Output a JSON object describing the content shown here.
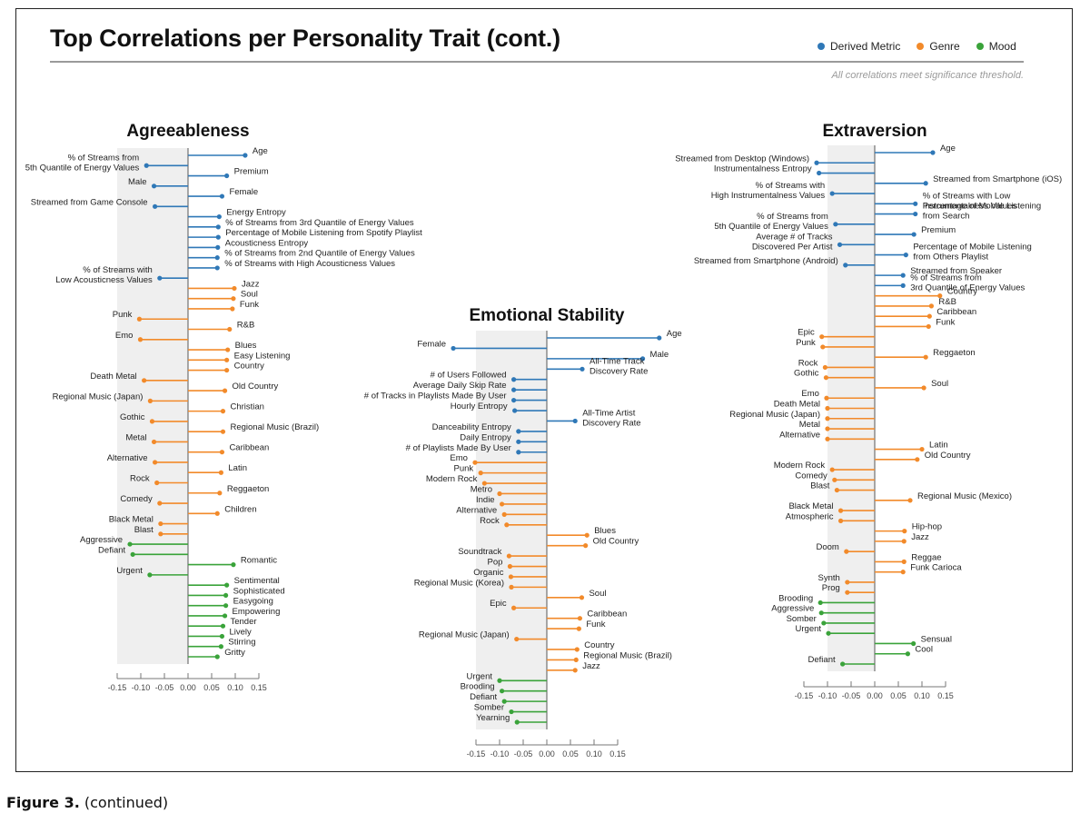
{
  "title": "Top Correlations per Personality Trait (cont.)",
  "note": "All correlations meet significance threshold.",
  "caption": {
    "label": "Figure 3.",
    "text": "(continued)"
  },
  "colors": {
    "Derived Metric": "#2f78b7",
    "Genre": "#f28a2a",
    "Mood": "#3aa33a",
    "band": "#efefef",
    "axis": "#777777"
  },
  "legend": [
    {
      "label": "Derived Metric",
      "category": "Derived Metric"
    },
    {
      "label": "Genre",
      "category": "Genre"
    },
    {
      "label": "Mood",
      "category": "Mood"
    }
  ],
  "chart_data": [
    {
      "type": "lollipop",
      "title": "Agreeableness",
      "xlim": [
        -0.15,
        0.15
      ],
      "ticks": [
        "-0.15",
        "-0.10",
        "-0.05",
        "0.00",
        "0.05",
        "0.10",
        "0.15"
      ],
      "band": [
        -0.15,
        0
      ],
      "items": [
        {
          "label": "Age",
          "value": 0.121,
          "category": "Derived Metric"
        },
        {
          "label": [
            "% of Streams from",
            "5th Quantile of Energy Values"
          ],
          "value": -0.088,
          "category": "Derived Metric"
        },
        {
          "label": "Premium",
          "value": 0.082,
          "category": "Derived Metric"
        },
        {
          "label": "Male",
          "value": -0.072,
          "category": "Derived Metric"
        },
        {
          "label": "Female",
          "value": 0.072,
          "category": "Derived Metric"
        },
        {
          "label": "Streamed from Game Console",
          "value": -0.07,
          "category": "Derived Metric"
        },
        {
          "label": "Energy Entropy",
          "value": 0.066,
          "category": "Derived Metric"
        },
        {
          "label": "% of Streams from 3rd Quantile of Energy Values",
          "value": 0.064,
          "category": "Derived Metric"
        },
        {
          "label": "Percentage of Mobile Listening from Spotify Playlist",
          "value": 0.064,
          "category": "Derived Metric"
        },
        {
          "label": "Acousticness Entropy",
          "value": 0.063,
          "category": "Derived Metric"
        },
        {
          "label": "% of Streams from 2nd Quantile of Energy Values",
          "value": 0.062,
          "category": "Derived Metric"
        },
        {
          "label": "% of Streams with High Acousticness Values",
          "value": 0.062,
          "category": "Derived Metric"
        },
        {
          "label": [
            "% of Streams with",
            "Low Acousticness Values"
          ],
          "value": -0.06,
          "category": "Derived Metric"
        },
        {
          "label": "Jazz",
          "value": 0.098,
          "category": "Genre"
        },
        {
          "label": "Soul",
          "value": 0.096,
          "category": "Genre"
        },
        {
          "label": "Funk",
          "value": 0.094,
          "category": "Genre"
        },
        {
          "label": "Punk",
          "value": -0.103,
          "category": "Genre"
        },
        {
          "label": "R&B",
          "value": 0.088,
          "category": "Genre"
        },
        {
          "label": "Emo",
          "value": -0.101,
          "category": "Genre"
        },
        {
          "label": "Blues",
          "value": 0.084,
          "category": "Genre"
        },
        {
          "label": "Easy Listening",
          "value": 0.082,
          "category": "Genre"
        },
        {
          "label": "Country",
          "value": 0.082,
          "category": "Genre"
        },
        {
          "label": "Death Metal",
          "value": -0.093,
          "category": "Genre"
        },
        {
          "label": "Old Country",
          "value": 0.078,
          "category": "Genre"
        },
        {
          "label": "Regional Music (Japan)",
          "value": -0.08,
          "category": "Genre"
        },
        {
          "label": "Christian",
          "value": 0.074,
          "category": "Genre"
        },
        {
          "label": "Gothic",
          "value": -0.076,
          "category": "Genre"
        },
        {
          "label": "Regional Music (Brazil)",
          "value": 0.074,
          "category": "Genre"
        },
        {
          "label": "Metal",
          "value": -0.072,
          "category": "Genre"
        },
        {
          "label": "Caribbean",
          "value": 0.072,
          "category": "Genre"
        },
        {
          "label": "Alternative",
          "value": -0.07,
          "category": "Genre"
        },
        {
          "label": "Latin",
          "value": 0.07,
          "category": "Genre"
        },
        {
          "label": "Rock",
          "value": -0.066,
          "category": "Genre"
        },
        {
          "label": "Reggaeton",
          "value": 0.067,
          "category": "Genre"
        },
        {
          "label": "Comedy",
          "value": -0.06,
          "category": "Genre"
        },
        {
          "label": "Children",
          "value": 0.062,
          "category": "Genre"
        },
        {
          "label": "Black Metal",
          "value": -0.058,
          "category": "Genre"
        },
        {
          "label": "Blast",
          "value": -0.058,
          "category": "Genre"
        },
        {
          "label": "Aggressive",
          "value": -0.123,
          "category": "Mood"
        },
        {
          "label": "Defiant",
          "value": -0.117,
          "category": "Mood"
        },
        {
          "label": "Romantic",
          "value": 0.096,
          "category": "Mood"
        },
        {
          "label": "Urgent",
          "value": -0.081,
          "category": "Mood"
        },
        {
          "label": "Sentimental",
          "value": 0.082,
          "category": "Mood"
        },
        {
          "label": "Sophisticated",
          "value": 0.08,
          "category": "Mood"
        },
        {
          "label": "Easygoing",
          "value": 0.08,
          "category": "Mood"
        },
        {
          "label": "Empowering",
          "value": 0.078,
          "category": "Mood"
        },
        {
          "label": "Tender",
          "value": 0.074,
          "category": "Mood"
        },
        {
          "label": "Lively",
          "value": 0.072,
          "category": "Mood"
        },
        {
          "label": "Stirring",
          "value": 0.07,
          "category": "Mood"
        },
        {
          "label": "Gritty",
          "value": 0.062,
          "category": "Mood"
        }
      ]
    },
    {
      "type": "lollipop",
      "title": "Emotional Stability",
      "xlim": [
        -0.15,
        0.15
      ],
      "ticks": [
        "-0.15",
        "-0.10",
        "-0.05",
        "0.00",
        "0.05",
        "0.10",
        "0.15"
      ],
      "band": [
        -0.15,
        0
      ],
      "items": [
        {
          "label": "Age",
          "value": 0.238,
          "category": "Derived Metric"
        },
        {
          "label": "Female",
          "value": -0.198,
          "category": "Derived Metric"
        },
        {
          "label": "Male",
          "value": 0.203,
          "category": "Derived Metric"
        },
        {
          "label": [
            "All-Time Track",
            "Discovery Rate"
          ],
          "value": 0.075,
          "category": "Derived Metric"
        },
        {
          "label": "# of Users Followed",
          "value": -0.07,
          "category": "Derived Metric"
        },
        {
          "label": "Average Daily Skip Rate",
          "value": -0.07,
          "category": "Derived Metric"
        },
        {
          "label": "# of Tracks in Playlists Made By User",
          "value": -0.07,
          "category": "Derived Metric"
        },
        {
          "label": "Hourly Entropy",
          "value": -0.068,
          "category": "Derived Metric"
        },
        {
          "label": [
            "All-Time Artist",
            "Discovery Rate"
          ],
          "value": 0.06,
          "category": "Derived Metric"
        },
        {
          "label": "Danceability Entropy",
          "value": -0.06,
          "category": "Derived Metric"
        },
        {
          "label": "Daily Entropy",
          "value": -0.06,
          "category": "Derived Metric"
        },
        {
          "label": "# of Playlists Made By User",
          "value": -0.06,
          "category": "Derived Metric"
        },
        {
          "label": "Emo",
          "value": -0.152,
          "category": "Genre"
        },
        {
          "label": "Punk",
          "value": -0.14,
          "category": "Genre"
        },
        {
          "label": "Modern Rock",
          "value": -0.132,
          "category": "Genre"
        },
        {
          "label": "Metro",
          "value": -0.1,
          "category": "Genre"
        },
        {
          "label": "Indie",
          "value": -0.095,
          "category": "Genre"
        },
        {
          "label": "Alternative",
          "value": -0.09,
          "category": "Genre"
        },
        {
          "label": "Rock",
          "value": -0.085,
          "category": "Genre"
        },
        {
          "label": "Blues",
          "value": 0.085,
          "category": "Genre"
        },
        {
          "label": "Old Country",
          "value": 0.082,
          "category": "Genre"
        },
        {
          "label": "Soundtrack",
          "value": -0.08,
          "category": "Genre"
        },
        {
          "label": "Pop",
          "value": -0.078,
          "category": "Genre"
        },
        {
          "label": "Organic",
          "value": -0.076,
          "category": "Genre"
        },
        {
          "label": "Regional Music (Korea)",
          "value": -0.075,
          "category": "Genre"
        },
        {
          "label": "Soul",
          "value": 0.074,
          "category": "Genre"
        },
        {
          "label": "Epic",
          "value": -0.07,
          "category": "Genre"
        },
        {
          "label": "Caribbean",
          "value": 0.07,
          "category": "Genre"
        },
        {
          "label": "Funk",
          "value": 0.068,
          "category": "Genre"
        },
        {
          "label": "Regional Music (Japan)",
          "value": -0.064,
          "category": "Genre"
        },
        {
          "label": "Country",
          "value": 0.064,
          "category": "Genre"
        },
        {
          "label": "Regional Music (Brazil)",
          "value": 0.062,
          "category": "Genre"
        },
        {
          "label": "Jazz",
          "value": 0.06,
          "category": "Genre"
        },
        {
          "label": "Urgent",
          "value": -0.1,
          "category": "Mood"
        },
        {
          "label": "Brooding",
          "value": -0.095,
          "category": "Mood"
        },
        {
          "label": "Defiant",
          "value": -0.09,
          "category": "Mood"
        },
        {
          "label": "Somber",
          "value": -0.075,
          "category": "Mood"
        },
        {
          "label": "Yearning",
          "value": -0.063,
          "category": "Mood"
        }
      ]
    },
    {
      "type": "lollipop",
      "title": "Extraversion",
      "xlim": [
        -0.15,
        0.15
      ],
      "ticks": [
        "-0.15",
        "-0.10",
        "-0.05",
        "0.00",
        "0.05",
        "0.10",
        "0.15"
      ],
      "band": [
        -0.1,
        0
      ],
      "items": [
        {
          "label": "Age",
          "value": 0.123,
          "category": "Derived Metric"
        },
        {
          "label": "Streamed from Desktop (Windows)",
          "value": -0.123,
          "category": "Derived Metric"
        },
        {
          "label": "Instrumentalness Entropy",
          "value": -0.118,
          "category": "Derived Metric"
        },
        {
          "label": "Streamed from Smartphone (iOS)",
          "value": 0.108,
          "category": "Derived Metric"
        },
        {
          "label": [
            "% of Streams with",
            "High Instrumentalness Values"
          ],
          "value": -0.09,
          "category": "Derived Metric"
        },
        {
          "label": [
            "% of Streams with Low",
            "Instrumentalness Values"
          ],
          "value": 0.086,
          "category": "Derived Metric"
        },
        {
          "label": [
            "Percentage of Mobile Listening",
            "from Search"
          ],
          "value": 0.086,
          "category": "Derived Metric"
        },
        {
          "label": [
            "% of Streams from",
            "5th Quantile of Energy Values"
          ],
          "value": -0.083,
          "category": "Derived Metric"
        },
        {
          "label": "Premium",
          "value": 0.083,
          "category": "Derived Metric"
        },
        {
          "label": [
            "Average # of Tracks",
            "Discovered Per Artist"
          ],
          "value": -0.074,
          "category": "Derived Metric"
        },
        {
          "label": [
            "Percentage of Mobile Listening",
            "from Others Playlist"
          ],
          "value": 0.066,
          "category": "Derived Metric"
        },
        {
          "label": "Streamed from Smartphone (Android)",
          "value": -0.062,
          "category": "Derived Metric"
        },
        {
          "label": "Streamed from Speaker",
          "value": 0.06,
          "category": "Derived Metric"
        },
        {
          "label": [
            "% of Streams from",
            "3rd Quantile of Energy Values"
          ],
          "value": 0.06,
          "category": "Derived Metric"
        },
        {
          "label": "Country",
          "value": 0.138,
          "category": "Genre"
        },
        {
          "label": "R&B",
          "value": 0.12,
          "category": "Genre"
        },
        {
          "label": "Caribbean",
          "value": 0.116,
          "category": "Genre"
        },
        {
          "label": "Funk",
          "value": 0.114,
          "category": "Genre"
        },
        {
          "label": "Epic",
          "value": -0.112,
          "category": "Genre"
        },
        {
          "label": "Punk",
          "value": -0.11,
          "category": "Genre"
        },
        {
          "label": "Reggaeton",
          "value": 0.108,
          "category": "Genre"
        },
        {
          "label": "Rock",
          "value": -0.105,
          "category": "Genre"
        },
        {
          "label": "Gothic",
          "value": -0.103,
          "category": "Genre"
        },
        {
          "label": "Soul",
          "value": 0.104,
          "category": "Genre"
        },
        {
          "label": "Emo",
          "value": -0.102,
          "category": "Genre"
        },
        {
          "label": "Death Metal",
          "value": -0.1,
          "category": "Genre"
        },
        {
          "label": "Regional Music (Japan)",
          "value": -0.1,
          "category": "Genre"
        },
        {
          "label": "Metal",
          "value": -0.1,
          "category": "Genre"
        },
        {
          "label": "Alternative",
          "value": -0.1,
          "category": "Genre"
        },
        {
          "label": "Latin",
          "value": 0.1,
          "category": "Genre"
        },
        {
          "label": "Old Country",
          "value": 0.09,
          "category": "Genre"
        },
        {
          "label": "Modern Rock",
          "value": -0.09,
          "category": "Genre"
        },
        {
          "label": "Comedy",
          "value": -0.085,
          "category": "Genre"
        },
        {
          "label": "Blast",
          "value": -0.08,
          "category": "Genre"
        },
        {
          "label": "Regional Music (Mexico)",
          "value": 0.075,
          "category": "Genre"
        },
        {
          "label": "Black Metal",
          "value": -0.072,
          "category": "Genre"
        },
        {
          "label": "Atmospheric",
          "value": -0.072,
          "category": "Genre"
        },
        {
          "label": "Hip-hop",
          "value": 0.063,
          "category": "Genre"
        },
        {
          "label": "Jazz",
          "value": 0.062,
          "category": "Genre"
        },
        {
          "label": "Doom",
          "value": -0.06,
          "category": "Genre"
        },
        {
          "label": "Reggae",
          "value": 0.062,
          "category": "Genre"
        },
        {
          "label": "Funk Carioca",
          "value": 0.06,
          "category": "Genre"
        },
        {
          "label": "Synth",
          "value": -0.058,
          "category": "Genre"
        },
        {
          "label": "Prog",
          "value": -0.058,
          "category": "Genre"
        },
        {
          "label": "Brooding",
          "value": -0.115,
          "category": "Mood"
        },
        {
          "label": "Aggressive",
          "value": -0.113,
          "category": "Mood"
        },
        {
          "label": "Somber",
          "value": -0.108,
          "category": "Mood"
        },
        {
          "label": "Urgent",
          "value": -0.098,
          "category": "Mood"
        },
        {
          "label": "Sensual",
          "value": 0.082,
          "category": "Mood"
        },
        {
          "label": "Cool",
          "value": 0.07,
          "category": "Mood"
        },
        {
          "label": "Defiant",
          "value": -0.068,
          "category": "Mood"
        }
      ]
    }
  ]
}
